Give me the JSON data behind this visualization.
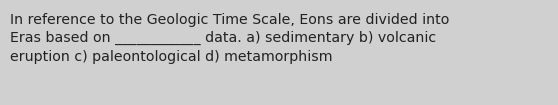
{
  "text_line1": "In reference to the Geologic Time Scale, Eons are divided into",
  "text_line2": "Eras based on ____________ data. a) sedimentary b) volcanic",
  "text_line3": "eruption c) paleontological d) metamorphism",
  "background_color": "#d0d0d0",
  "text_color": "#222222",
  "font_size": 10.2,
  "fig_width": 5.58,
  "fig_height": 1.05,
  "dpi": 100
}
